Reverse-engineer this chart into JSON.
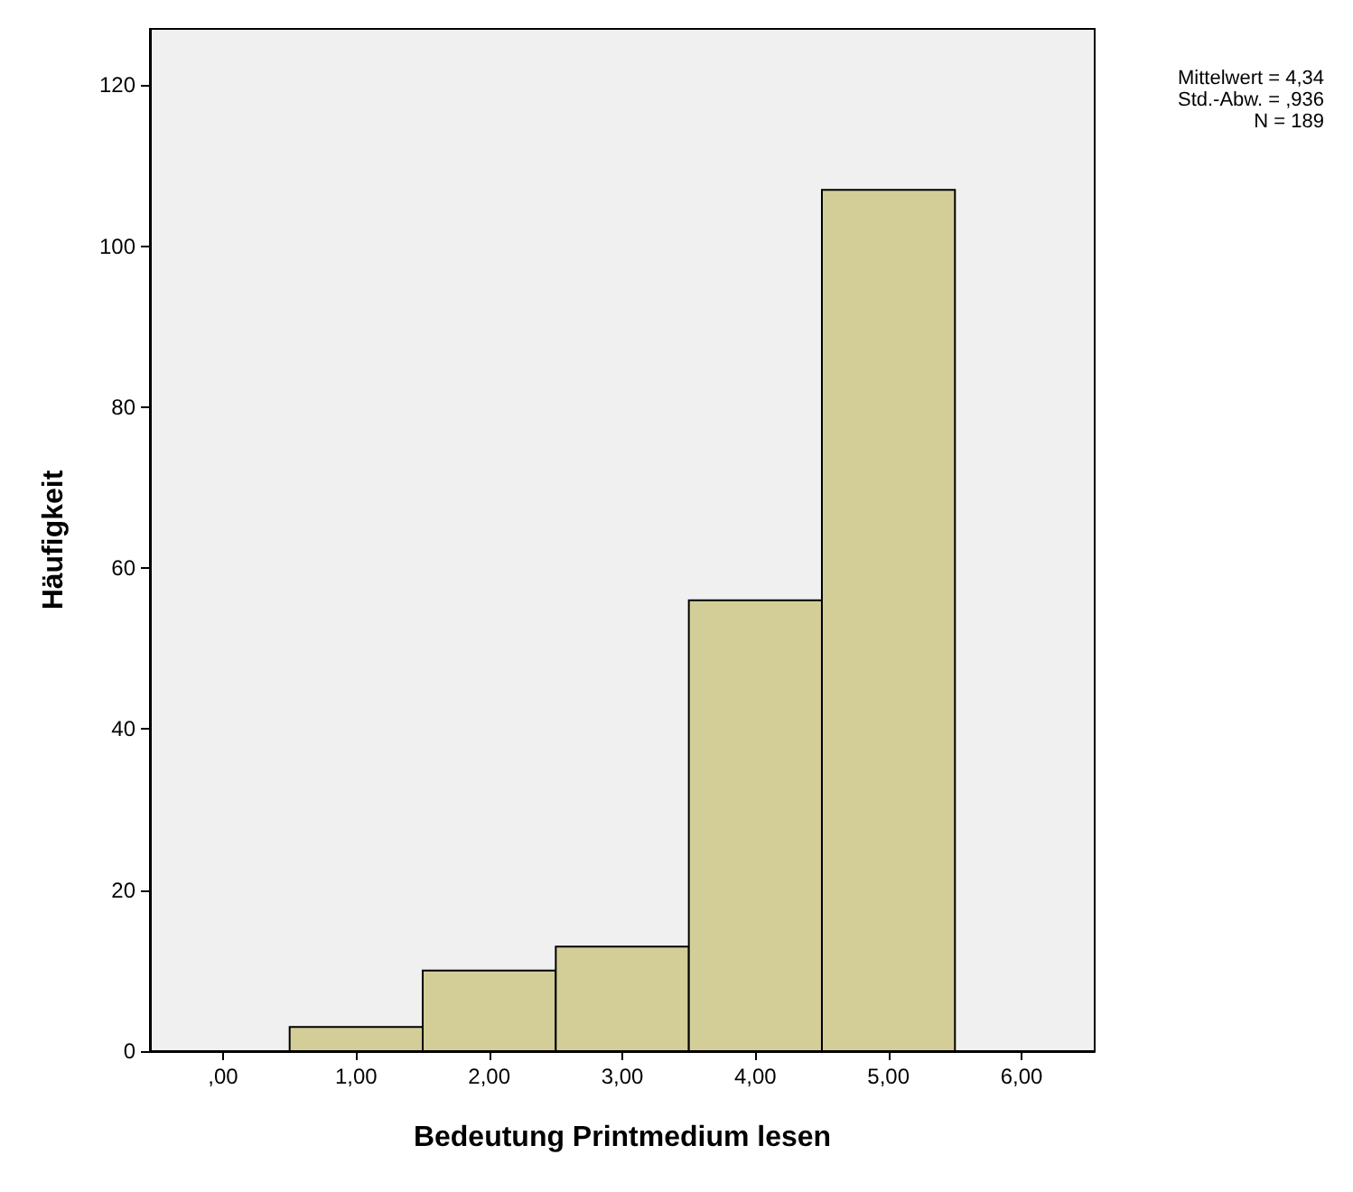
{
  "chart_data": {
    "type": "histogram",
    "xlabel": "Bedeutung Printmedium lesen",
    "ylabel": "Häufigkeit",
    "bins": [
      0.5,
      1.5,
      2.5,
      3.5,
      4.5,
      5.5
    ],
    "values": [
      3,
      10,
      13,
      56,
      107
    ],
    "color": "#d3ce97",
    "xlim": [
      -0.55,
      6.55
    ],
    "xticks": [
      {
        "value": 0,
        "label": ",00"
      },
      {
        "value": 1,
        "label": "1,00"
      },
      {
        "value": 2,
        "label": "2,00"
      },
      {
        "value": 3,
        "label": "3,00"
      },
      {
        "value": 4,
        "label": "4,00"
      },
      {
        "value": 5,
        "label": "5,00"
      },
      {
        "value": 6,
        "label": "6,00"
      }
    ],
    "ylim": [
      0,
      127
    ],
    "yticks": [
      0,
      20,
      40,
      60,
      80,
      100,
      120
    ],
    "grid": false,
    "annotations": [
      "Mittelwert = 4,34",
      "Std.-Abw. = ,936",
      "N = 189"
    ]
  }
}
